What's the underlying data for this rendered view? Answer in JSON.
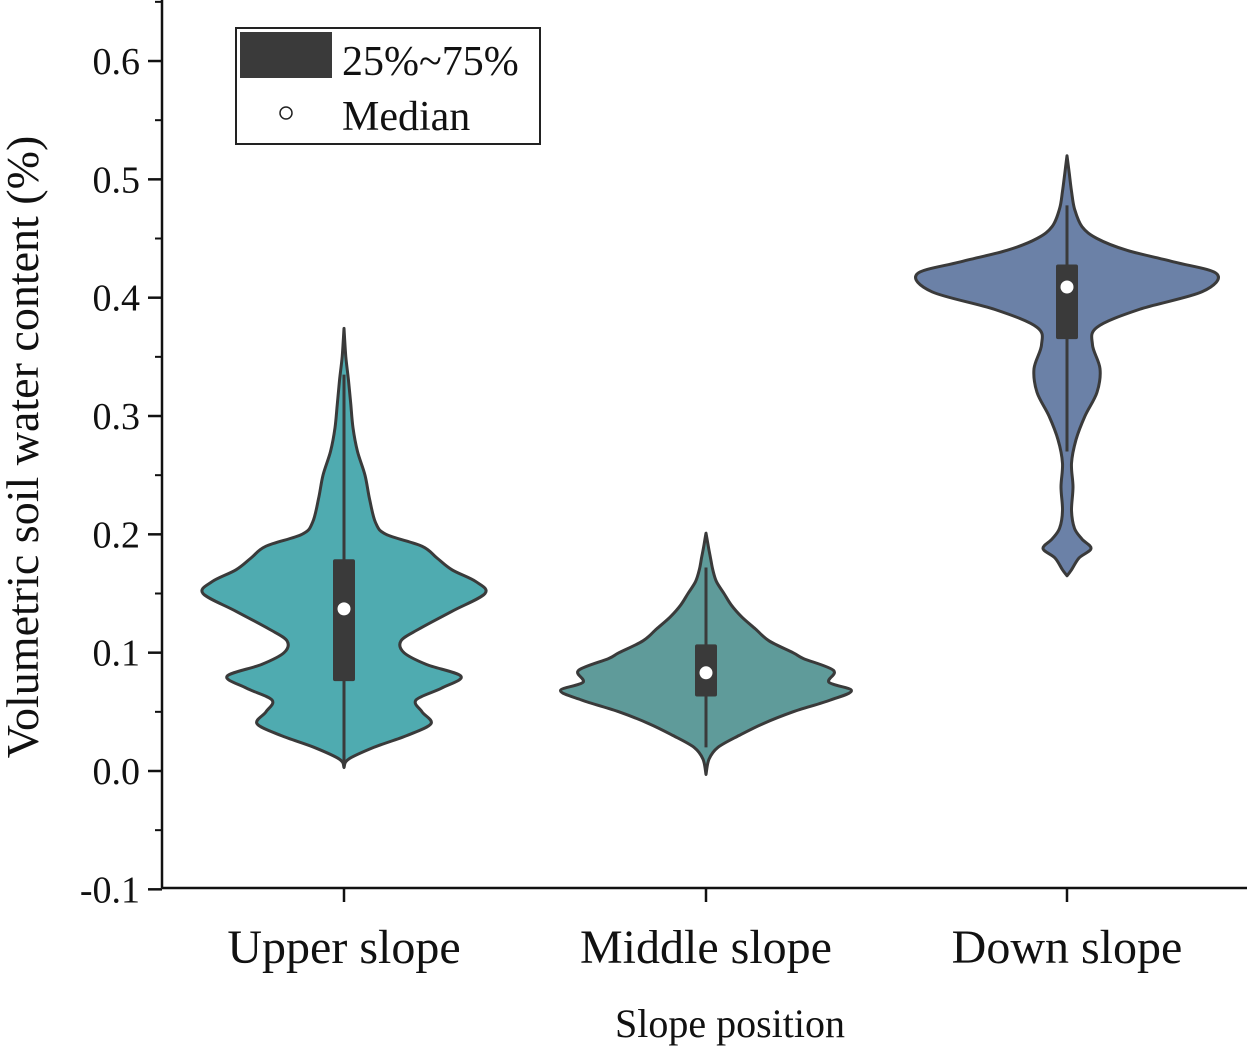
{
  "chart_data": {
    "type": "violin",
    "title": "",
    "xlabel": "Slope position",
    "ylabel": "Volumetric soil water content (%)",
    "ylim": [
      -0.1,
      0.65
    ],
    "yticks": [
      "-0.1",
      "0.0",
      "0.1",
      "0.2",
      "0.3",
      "0.4",
      "0.5",
      "0.6"
    ],
    "categories": [
      "Upper slope",
      "Middle slope",
      "Down slope"
    ],
    "legend": {
      "position": "top-left",
      "iqr_label": "25%~75%",
      "median_label": "Median"
    },
    "series": [
      {
        "category": "Upper slope",
        "color": "#4fabb0",
        "min": 0.003,
        "max": 0.374,
        "q1": 0.076,
        "median": 0.137,
        "q3": 0.179,
        "whisker_low": 0.003,
        "whisker_high": 0.335,
        "density": [
          [
            0.003,
            0.0
          ],
          [
            0.01,
            0.03
          ],
          [
            0.02,
            0.2
          ],
          [
            0.03,
            0.42
          ],
          [
            0.04,
            0.58
          ],
          [
            0.05,
            0.52
          ],
          [
            0.06,
            0.48
          ],
          [
            0.07,
            0.65
          ],
          [
            0.08,
            0.78
          ],
          [
            0.09,
            0.55
          ],
          [
            0.1,
            0.4
          ],
          [
            0.11,
            0.38
          ],
          [
            0.12,
            0.5
          ],
          [
            0.135,
            0.72
          ],
          [
            0.15,
            0.94
          ],
          [
            0.16,
            0.88
          ],
          [
            0.17,
            0.72
          ],
          [
            0.18,
            0.62
          ],
          [
            0.19,
            0.52
          ],
          [
            0.2,
            0.28
          ],
          [
            0.21,
            0.21
          ],
          [
            0.23,
            0.17
          ],
          [
            0.25,
            0.14
          ],
          [
            0.27,
            0.09
          ],
          [
            0.29,
            0.06
          ],
          [
            0.31,
            0.045
          ],
          [
            0.33,
            0.03
          ],
          [
            0.35,
            0.012
          ],
          [
            0.374,
            0.0
          ]
        ]
      },
      {
        "category": "Middle slope",
        "color": "#5f9b9a",
        "min": -0.003,
        "max": 0.201,
        "q1": 0.063,
        "median": 0.083,
        "q3": 0.107,
        "whisker_low": 0.02,
        "whisker_high": 0.172,
        "density": [
          [
            -0.003,
            0.0
          ],
          [
            0.01,
            0.02
          ],
          [
            0.02,
            0.08
          ],
          [
            0.03,
            0.22
          ],
          [
            0.04,
            0.38
          ],
          [
            0.05,
            0.58
          ],
          [
            0.06,
            0.83
          ],
          [
            0.068,
            0.97
          ],
          [
            0.075,
            0.82
          ],
          [
            0.085,
            0.85
          ],
          [
            0.095,
            0.65
          ],
          [
            0.1,
            0.58
          ],
          [
            0.11,
            0.42
          ],
          [
            0.12,
            0.33
          ],
          [
            0.13,
            0.24
          ],
          [
            0.14,
            0.17
          ],
          [
            0.15,
            0.12
          ],
          [
            0.16,
            0.07
          ],
          [
            0.17,
            0.045
          ],
          [
            0.18,
            0.03
          ],
          [
            0.19,
            0.015
          ],
          [
            0.201,
            0.0
          ]
        ]
      },
      {
        "category": "Down slope",
        "color": "#6b81a7",
        "min": 0.165,
        "max": 0.52,
        "q1": 0.365,
        "median": 0.409,
        "q3": 0.428,
        "whisker_low": 0.27,
        "whisker_high": 0.478,
        "density": [
          [
            0.165,
            0.0
          ],
          [
            0.17,
            0.03
          ],
          [
            0.18,
            0.08
          ],
          [
            0.188,
            0.16
          ],
          [
            0.196,
            0.1
          ],
          [
            0.205,
            0.05
          ],
          [
            0.22,
            0.03
          ],
          [
            0.24,
            0.04
          ],
          [
            0.26,
            0.03
          ],
          [
            0.28,
            0.06
          ],
          [
            0.3,
            0.12
          ],
          [
            0.32,
            0.2
          ],
          [
            0.34,
            0.22
          ],
          [
            0.36,
            0.17
          ],
          [
            0.375,
            0.2
          ],
          [
            0.39,
            0.48
          ],
          [
            0.405,
            0.9
          ],
          [
            0.42,
            1.0
          ],
          [
            0.43,
            0.72
          ],
          [
            0.44,
            0.4
          ],
          [
            0.45,
            0.2
          ],
          [
            0.46,
            0.1
          ],
          [
            0.475,
            0.05
          ],
          [
            0.49,
            0.03
          ],
          [
            0.505,
            0.015
          ],
          [
            0.52,
            0.0
          ]
        ]
      }
    ]
  }
}
